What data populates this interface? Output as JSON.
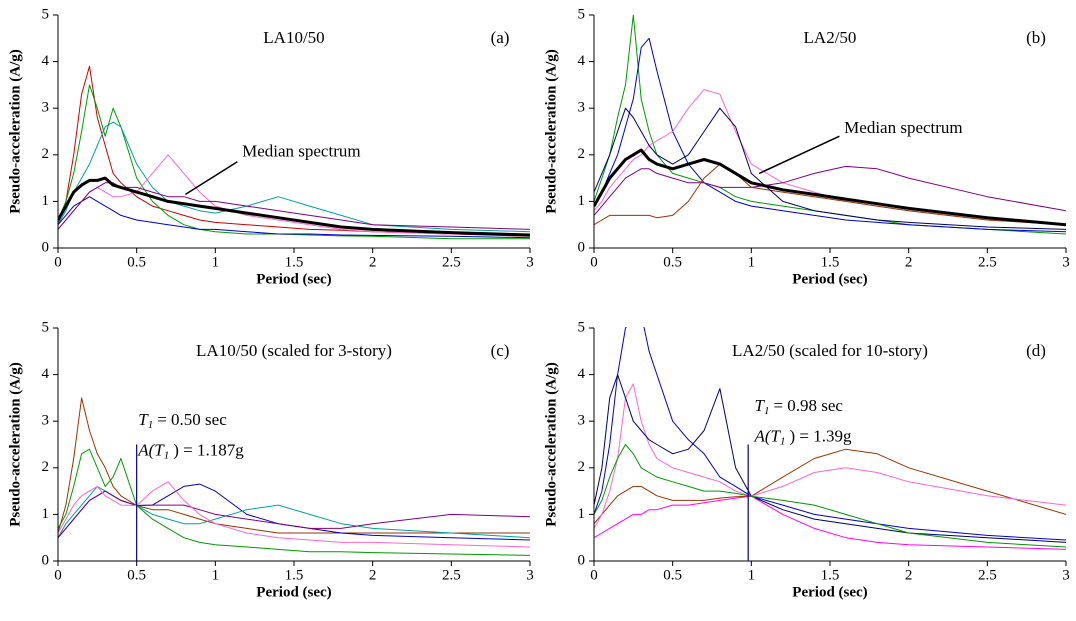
{
  "chart_data": [
    {
      "type": "line",
      "title": "LA10/50",
      "panel": "(a)",
      "xlabel": "Period (sec)",
      "ylabel": "Pseudo-acceleration (A/g)",
      "xlim": [
        0,
        3
      ],
      "ylim": [
        0,
        5
      ],
      "xticks": [
        0,
        0.5,
        1,
        1.5,
        2,
        2.5,
        3
      ],
      "yticks": [
        0,
        1,
        2,
        3,
        4,
        5
      ],
      "annotation": "Median spectrum",
      "x": [
        0,
        0.05,
        0.1,
        0.15,
        0.2,
        0.25,
        0.3,
        0.35,
        0.4,
        0.5,
        0.6,
        0.7,
        0.8,
        0.9,
        1,
        1.2,
        1.4,
        1.6,
        1.8,
        2,
        2.5,
        3
      ],
      "series": [
        {
          "color": "#cc0000",
          "width": 1,
          "values": [
            0.5,
            1.0,
            2.0,
            3.3,
            3.9,
            2.8,
            2.2,
            1.6,
            1.4,
            1.1,
            0.9,
            0.8,
            0.7,
            0.6,
            0.55,
            0.5,
            0.45,
            0.4,
            0.38,
            0.35,
            0.3,
            0.25
          ]
        },
        {
          "color": "#009900",
          "width": 1,
          "values": [
            0.6,
            1.0,
            1.6,
            2.5,
            3.5,
            3.0,
            2.4,
            3.0,
            2.6,
            1.5,
            1.0,
            0.7,
            0.5,
            0.4,
            0.35,
            0.3,
            0.3,
            0.28,
            0.26,
            0.25,
            0.2,
            0.2
          ]
        },
        {
          "color": "#00a0a0",
          "width": 1,
          "values": [
            0.5,
            0.8,
            1.2,
            1.5,
            1.8,
            2.2,
            2.6,
            2.7,
            2.6,
            1.8,
            1.3,
            1.0,
            0.9,
            0.8,
            0.75,
            0.9,
            1.1,
            0.9,
            0.7,
            0.5,
            0.4,
            0.35
          ]
        },
        {
          "color": "#ff66cc",
          "width": 1,
          "values": [
            0.4,
            0.6,
            0.8,
            1.0,
            1.2,
            1.3,
            1.2,
            1.1,
            1.1,
            1.2,
            1.6,
            2.0,
            1.6,
            1.2,
            0.9,
            0.7,
            0.6,
            0.5,
            0.4,
            0.35,
            0.3,
            0.3
          ]
        },
        {
          "color": "#0000cc",
          "width": 1,
          "values": [
            0.5,
            0.7,
            0.9,
            1.0,
            1.1,
            1.0,
            0.9,
            0.8,
            0.7,
            0.6,
            0.55,
            0.5,
            0.45,
            0.4,
            0.4,
            0.35,
            0.3,
            0.3,
            0.28,
            0.27,
            0.25,
            0.22
          ]
        },
        {
          "color": "#800080",
          "width": 1,
          "values": [
            0.4,
            0.6,
            0.8,
            1.0,
            1.2,
            1.3,
            1.4,
            1.4,
            1.3,
            1.3,
            1.2,
            1.1,
            1.1,
            1.0,
            1.0,
            0.9,
            0.8,
            0.7,
            0.6,
            0.5,
            0.45,
            0.4
          ]
        },
        {
          "color": "#000000",
          "width": 3,
          "values": [
            0.6,
            0.9,
            1.2,
            1.35,
            1.45,
            1.45,
            1.5,
            1.35,
            1.3,
            1.2,
            1.1,
            1.0,
            0.95,
            0.9,
            0.85,
            0.75,
            0.65,
            0.55,
            0.45,
            0.4,
            0.33,
            0.28
          ]
        }
      ]
    },
    {
      "type": "line",
      "title": "LA2/50",
      "panel": "(b)",
      "xlabel": "Period (sec)",
      "ylabel": "Pseudo-acceleration (A/g)",
      "xlim": [
        0,
        3
      ],
      "ylim": [
        0,
        5
      ],
      "xticks": [
        0,
        0.5,
        1,
        1.5,
        2,
        2.5,
        3
      ],
      "yticks": [
        0,
        1,
        2,
        3,
        4,
        5
      ],
      "annotation": "Median spectrum",
      "x": [
        0,
        0.05,
        0.1,
        0.15,
        0.2,
        0.25,
        0.3,
        0.35,
        0.4,
        0.5,
        0.6,
        0.7,
        0.8,
        0.9,
        1,
        1.2,
        1.4,
        1.6,
        1.8,
        2,
        2.5,
        3
      ],
      "series": [
        {
          "color": "#009900",
          "width": 1,
          "values": [
            1.0,
            1.5,
            2.0,
            2.8,
            3.5,
            5.0,
            3.2,
            2.5,
            2.0,
            1.6,
            1.5,
            1.4,
            1.3,
            1.1,
            1.0,
            0.9,
            0.8,
            0.7,
            0.6,
            0.5,
            0.4,
            0.3
          ]
        },
        {
          "color": "#0000cc",
          "width": 1,
          "values": [
            0.9,
            1.2,
            1.6,
            2.0,
            2.6,
            3.2,
            4.3,
            4.5,
            3.8,
            2.5,
            1.8,
            1.4,
            1.2,
            1.0,
            0.9,
            0.8,
            0.7,
            0.6,
            0.55,
            0.5,
            0.4,
            0.35
          ]
        },
        {
          "color": "#ff66cc",
          "width": 1,
          "values": [
            0.8,
            1.0,
            1.3,
            1.5,
            1.7,
            1.9,
            2.0,
            2.2,
            2.3,
            2.5,
            3.0,
            3.4,
            3.3,
            2.5,
            1.8,
            1.4,
            1.2,
            1.0,
            0.9,
            0.8,
            0.6,
            0.5
          ]
        },
        {
          "color": "#800080",
          "width": 1,
          "values": [
            0.7,
            0.9,
            1.1,
            1.3,
            1.5,
            1.6,
            1.7,
            1.7,
            1.6,
            1.5,
            1.4,
            1.4,
            1.3,
            1.3,
            1.3,
            1.4,
            1.6,
            1.75,
            1.7,
            1.5,
            1.1,
            0.8
          ]
        },
        {
          "color": "#993300",
          "width": 1,
          "values": [
            0.5,
            0.6,
            0.7,
            0.7,
            0.7,
            0.7,
            0.7,
            0.7,
            0.65,
            0.7,
            1.0,
            1.5,
            1.8,
            1.6,
            1.3,
            1.2,
            1.1,
            1.0,
            0.9,
            0.8,
            0.6,
            0.5
          ]
        },
        {
          "color": "#000066",
          "width": 1,
          "values": [
            1.2,
            1.6,
            2.0,
            2.5,
            3.0,
            2.8,
            2.5,
            2.2,
            2.0,
            1.8,
            2.0,
            2.5,
            3.0,
            2.6,
            1.6,
            1.0,
            0.8,
            0.7,
            0.6,
            0.55,
            0.45,
            0.4
          ]
        },
        {
          "color": "#000000",
          "width": 3,
          "values": [
            0.9,
            1.2,
            1.5,
            1.7,
            1.9,
            2.0,
            2.1,
            1.9,
            1.8,
            1.7,
            1.8,
            1.9,
            1.8,
            1.6,
            1.4,
            1.25,
            1.15,
            1.05,
            0.95,
            0.85,
            0.65,
            0.5
          ]
        }
      ]
    },
    {
      "type": "line",
      "title": "LA10/50 (scaled for 3-story)",
      "panel": "(c)",
      "xlabel": "Period (sec)",
      "ylabel": "Pseudo-acceleration (A/g)",
      "xlim": [
        0,
        3
      ],
      "ylim": [
        0,
        5
      ],
      "xticks": [
        0,
        0.5,
        1,
        1.5,
        2,
        2.5,
        3
      ],
      "yticks": [
        0,
        1,
        2,
        3,
        4,
        5
      ],
      "marker": {
        "x": 0.5,
        "y_top": 2.5
      },
      "period_note": {
        "symbol": "T",
        "subscript": "1",
        "text": "= 0.50 sec"
      },
      "accel_note": {
        "symbol": "A(T",
        "subscript": "1",
        "text": ") = 1.187g"
      },
      "x": [
        0,
        0.05,
        0.1,
        0.15,
        0.2,
        0.25,
        0.3,
        0.35,
        0.4,
        0.5,
        0.6,
        0.7,
        0.8,
        0.9,
        1,
        1.2,
        1.4,
        1.6,
        1.8,
        2,
        2.5,
        3
      ],
      "series": [
        {
          "color": "#993300",
          "width": 1,
          "values": [
            0.6,
            1.2,
            2.2,
            3.5,
            2.8,
            2.3,
            2.0,
            1.6,
            1.4,
            1.19,
            1.1,
            1.1,
            1.0,
            0.9,
            0.8,
            0.7,
            0.6,
            0.6,
            0.6,
            0.6,
            0.6,
            0.6
          ]
        },
        {
          "color": "#009900",
          "width": 1,
          "values": [
            0.7,
            1.0,
            1.6,
            2.3,
            2.4,
            2.0,
            1.6,
            1.8,
            2.2,
            1.19,
            0.9,
            0.7,
            0.5,
            0.4,
            0.35,
            0.3,
            0.25,
            0.2,
            0.2,
            0.18,
            0.15,
            0.12
          ]
        },
        {
          "color": "#0000cc",
          "width": 1,
          "values": [
            0.5,
            0.7,
            0.9,
            1.1,
            1.3,
            1.4,
            1.5,
            1.4,
            1.3,
            1.19,
            1.2,
            1.4,
            1.6,
            1.65,
            1.5,
            1.0,
            0.8,
            0.7,
            0.6,
            0.55,
            0.5,
            0.45
          ]
        },
        {
          "color": "#00a0a0",
          "width": 1,
          "values": [
            0.5,
            0.8,
            1.0,
            1.2,
            1.4,
            1.6,
            1.5,
            1.4,
            1.3,
            1.19,
            1.0,
            0.9,
            0.8,
            0.8,
            0.9,
            1.1,
            1.2,
            1.0,
            0.8,
            0.7,
            0.6,
            0.5
          ]
        },
        {
          "color": "#800080",
          "width": 1,
          "values": [
            0.5,
            0.7,
            0.9,
            1.1,
            1.3,
            1.4,
            1.5,
            1.4,
            1.3,
            1.19,
            1.2,
            1.2,
            1.2,
            1.1,
            1.0,
            0.9,
            0.8,
            0.7,
            0.7,
            0.8,
            1.0,
            0.95
          ]
        },
        {
          "color": "#ff66cc",
          "width": 1,
          "values": [
            0.6,
            0.9,
            1.2,
            1.4,
            1.5,
            1.6,
            1.4,
            1.3,
            1.2,
            1.19,
            1.5,
            1.7,
            1.3,
            1.0,
            0.8,
            0.6,
            0.5,
            0.45,
            0.4,
            0.4,
            0.35,
            0.3
          ]
        }
      ]
    },
    {
      "type": "line",
      "title": "LA2/50 (scaled for 10-story)",
      "panel": "(d)",
      "xlabel": "Period (sec)",
      "ylabel": "Pseudo-acceleration (A/g)",
      "xlim": [
        0,
        3
      ],
      "ylim": [
        0,
        5
      ],
      "xticks": [
        0,
        0.5,
        1,
        1.5,
        2,
        2.5,
        3
      ],
      "yticks": [
        0,
        1,
        2,
        3,
        4,
        5
      ],
      "marker": {
        "x": 0.98,
        "y_top": 2.5
      },
      "period_note": {
        "symbol": "T",
        "subscript": "1",
        "text": "= 0.98 sec"
      },
      "accel_note": {
        "symbol": "A(T",
        "subscript": "1",
        "text": ") = 1.39g"
      },
      "x": [
        0,
        0.05,
        0.1,
        0.15,
        0.2,
        0.25,
        0.3,
        0.35,
        0.4,
        0.5,
        0.6,
        0.7,
        0.8,
        0.9,
        1,
        1.2,
        1.4,
        1.6,
        1.8,
        2,
        2.5,
        3
      ],
      "series": [
        {
          "color": "#0000cc",
          "width": 1,
          "values": [
            1.0,
            1.5,
            2.5,
            4.0,
            5.0,
            5.2,
            5.3,
            4.5,
            4.0,
            3.0,
            2.6,
            2.3,
            1.8,
            1.6,
            1.39,
            1.2,
            1.0,
            0.9,
            0.8,
            0.7,
            0.55,
            0.45
          ]
        },
        {
          "color": "#993300",
          "width": 1,
          "values": [
            0.8,
            1.0,
            1.2,
            1.4,
            1.5,
            1.6,
            1.6,
            1.5,
            1.4,
            1.3,
            1.3,
            1.3,
            1.35,
            1.38,
            1.39,
            1.8,
            2.2,
            2.4,
            2.3,
            2.0,
            1.5,
            1.0
          ]
        },
        {
          "color": "#ff66cc",
          "width": 1,
          "values": [
            0.7,
            1.0,
            1.5,
            2.2,
            3.5,
            3.8,
            3.0,
            2.5,
            2.2,
            2.0,
            1.9,
            1.8,
            1.7,
            1.5,
            1.39,
            1.6,
            1.9,
            2.0,
            1.9,
            1.7,
            1.4,
            1.2
          ]
        },
        {
          "color": "#000066",
          "width": 1,
          "values": [
            1.2,
            2.0,
            3.5,
            4.0,
            3.5,
            3.0,
            2.8,
            2.6,
            2.5,
            2.3,
            2.4,
            2.8,
            3.7,
            2.0,
            1.39,
            1.1,
            0.9,
            0.8,
            0.7,
            0.6,
            0.5,
            0.4
          ]
        },
        {
          "color": "#ff00ff",
          "width": 1,
          "values": [
            0.5,
            0.6,
            0.7,
            0.8,
            0.9,
            1.0,
            1.0,
            1.1,
            1.1,
            1.2,
            1.2,
            1.25,
            1.3,
            1.35,
            1.39,
            1.0,
            0.7,
            0.5,
            0.4,
            0.35,
            0.3,
            0.25
          ]
        },
        {
          "color": "#009900",
          "width": 1,
          "values": [
            1.0,
            1.3,
            1.8,
            2.2,
            2.5,
            2.3,
            2.0,
            1.9,
            1.8,
            1.7,
            1.6,
            1.5,
            1.5,
            1.45,
            1.39,
            1.3,
            1.2,
            1.0,
            0.8,
            0.6,
            0.4,
            0.3
          ]
        }
      ]
    }
  ]
}
